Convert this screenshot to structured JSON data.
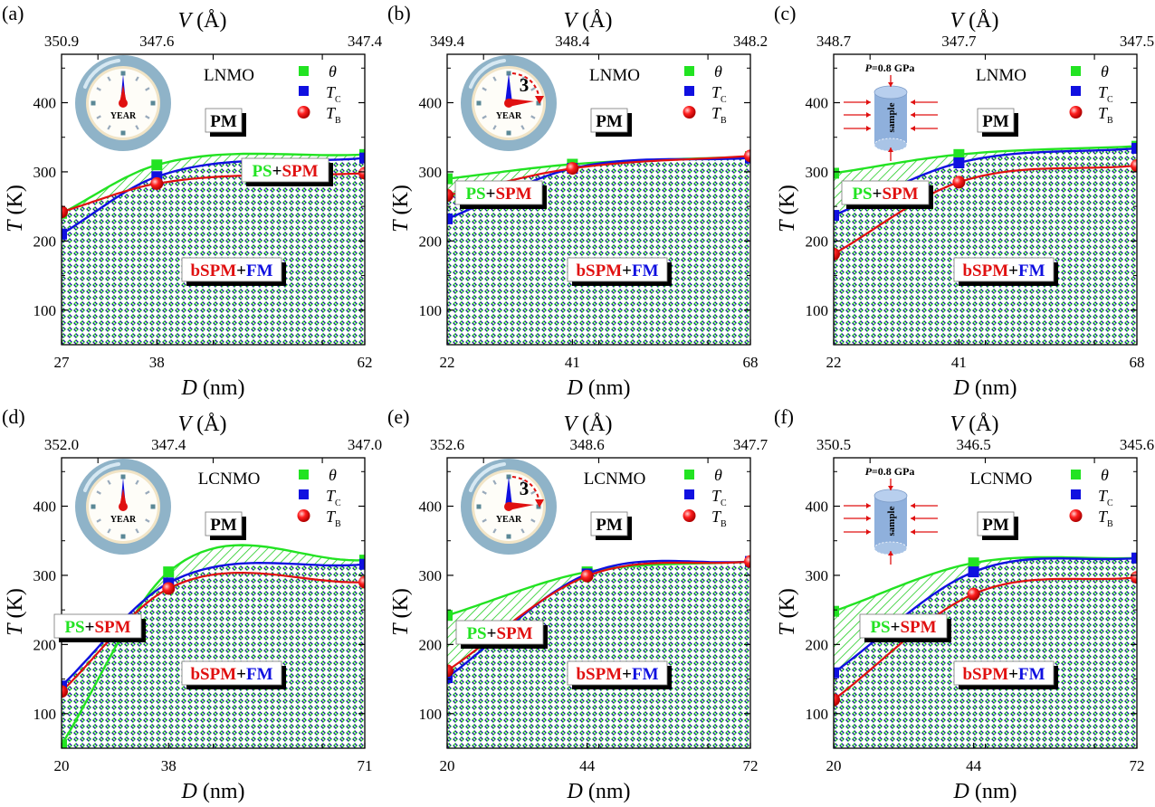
{
  "figure": {
    "colors": {
      "theta": "#22e322",
      "tc": "#1010e0",
      "tb": "#e01010",
      "hatch_green": "#22cc22",
      "hatch_blue": "#1a1a9a",
      "clock_ring": "#8fb3c8",
      "clock_face": "#fefdf8",
      "sample": "#8fb0dc"
    }
  },
  "chart_data": [
    {
      "panel_label": "(a)",
      "type": "line",
      "sample": "LNMO",
      "inset": "clock",
      "inset_years": "",
      "inset_text": "YEAR",
      "xlabel": "D (nm)",
      "xlabel_italic": "D",
      "xlabel_unit": " (nm)",
      "top_label_italic": "V",
      "top_label_unit": " (Å)",
      "ylabel_italic": "T",
      "ylabel_unit": " (K)",
      "x": [
        27,
        38,
        62
      ],
      "xticks": [
        "27",
        "38",
        "62"
      ],
      "top_ticks": [
        "350.9",
        "347.6",
        "347.4"
      ],
      "ylim": [
        50,
        470
      ],
      "yticks": [
        100,
        200,
        300,
        400
      ],
      "series": [
        {
          "name": "θ",
          "key": "theta",
          "values": [
            240,
            310,
            325
          ]
        },
        {
          "name": "T_C",
          "key": "tc",
          "values": [
            210,
            293,
            320
          ]
        },
        {
          "name": "T_B",
          "key": "tb",
          "values": [
            242,
            283,
            298
          ]
        }
      ],
      "region_labels": {
        "pm": "PM",
        "ps": "PS",
        "plus": "+",
        "spm": "SPM",
        "bspm": "bSPM",
        "fm": "FM"
      },
      "legend": [
        "θ",
        "T_C",
        "T_B"
      ],
      "legend_position": "top-right"
    },
    {
      "panel_label": "(b)",
      "type": "line",
      "sample": "LNMO",
      "inset": "clock",
      "inset_years": "3",
      "inset_text": "YEAR",
      "xlabel_italic": "D",
      "xlabel_unit": " (nm)",
      "top_label_italic": "V",
      "top_label_unit": " (Å)",
      "ylabel_italic": "T",
      "ylabel_unit": " (K)",
      "x": [
        22,
        41,
        68
      ],
      "xticks": [
        "22",
        "41",
        "68"
      ],
      "top_ticks": [
        "349.4",
        "348.4",
        "348.2"
      ],
      "ylim": [
        50,
        470
      ],
      "yticks": [
        100,
        200,
        300,
        400
      ],
      "series": [
        {
          "name": "θ",
          "key": "theta",
          "values": [
            290,
            311,
            322
          ]
        },
        {
          "name": "T_C",
          "key": "tc",
          "values": [
            232,
            305,
            320
          ]
        },
        {
          "name": "T_B",
          "key": "tb",
          "values": [
            266,
            305,
            323
          ]
        }
      ],
      "region_labels": {
        "pm": "PM",
        "ps": "PS",
        "plus": "+",
        "spm": "SPM",
        "bspm": "bSPM",
        "fm": "FM"
      },
      "legend": [
        "θ",
        "T_C",
        "T_B"
      ],
      "legend_position": "top-right"
    },
    {
      "panel_label": "(c)",
      "type": "line",
      "sample": "LNMO",
      "inset": "pressure",
      "inset_text": "P=0.8 GPa",
      "inset_sample": "sample",
      "xlabel_italic": "D",
      "xlabel_unit": " (nm)",
      "top_label_italic": "V",
      "top_label_unit": " (Å)",
      "ylabel_italic": "T",
      "ylabel_unit": " (K)",
      "x": [
        22,
        41,
        68
      ],
      "xticks": [
        "22",
        "41",
        "68"
      ],
      "top_ticks": [
        "348.7",
        "347.7",
        "347.5"
      ],
      "ylim": [
        50,
        470
      ],
      "yticks": [
        100,
        200,
        300,
        400
      ],
      "series": [
        {
          "name": "θ",
          "key": "theta",
          "values": [
            298,
            325,
            337
          ]
        },
        {
          "name": "T_C",
          "key": "tc",
          "values": [
            237,
            313,
            334
          ]
        },
        {
          "name": "T_B",
          "key": "tb",
          "values": [
            181,
            285,
            309
          ]
        }
      ],
      "region_labels": {
        "pm": "PM",
        "ps": "PS",
        "plus": "+",
        "spm": "SPM",
        "bspm": "bSPM",
        "fm": "FM"
      },
      "legend": [
        "θ",
        "T_C",
        "T_B"
      ],
      "legend_position": "top-right"
    },
    {
      "panel_label": "(d)",
      "type": "line",
      "sample": "LCNMO",
      "inset": "clock",
      "inset_years": "",
      "inset_text": "YEAR",
      "xlabel_italic": "D",
      "xlabel_unit": " (nm)",
      "top_label_italic": "V",
      "top_label_unit": " (Å)",
      "ylabel_italic": "T",
      "ylabel_unit": " (K)",
      "x": [
        20,
        38,
        71
      ],
      "xticks": [
        "20",
        "38",
        "71"
      ],
      "top_ticks": [
        "352.0",
        "347.4",
        "347.0"
      ],
      "ylim": [
        50,
        470
      ],
      "yticks": [
        100,
        200,
        300,
        400
      ],
      "series": [
        {
          "name": "θ",
          "key": "theta",
          "values": [
            55,
            305,
            322
          ]
        },
        {
          "name": "T_C",
          "key": "tc",
          "values": [
            140,
            289,
            316
          ]
        },
        {
          "name": "T_B",
          "key": "tb",
          "values": [
            132,
            281,
            290
          ]
        }
      ],
      "region_labels": {
        "pm": "PM",
        "ps": "PS",
        "plus": "+",
        "spm": "SPM",
        "bspm": "bSPM",
        "fm": "FM"
      },
      "legend": [
        "θ",
        "T_C",
        "T_B"
      ],
      "legend_position": "top-right"
    },
    {
      "panel_label": "(e)",
      "type": "line",
      "sample": "LCNMO",
      "inset": "clock",
      "inset_years": "3",
      "inset_text": "YEAR",
      "xlabel_italic": "D",
      "xlabel_unit": " (nm)",
      "top_label_italic": "V",
      "top_label_unit": " (Å)",
      "ylabel_italic": "T",
      "ylabel_unit": " (K)",
      "x": [
        20,
        44,
        72
      ],
      "xticks": [
        "20",
        "44",
        "72"
      ],
      "top_ticks": [
        "352.6",
        "348.6",
        "347.7"
      ],
      "ylim": [
        50,
        470
      ],
      "yticks": [
        100,
        200,
        300,
        400
      ],
      "series": [
        {
          "name": "θ",
          "key": "theta",
          "values": [
            242,
            305,
            320
          ]
        },
        {
          "name": "T_C",
          "key": "tc",
          "values": [
            152,
            302,
            320
          ]
        },
        {
          "name": "T_B",
          "key": "tb",
          "values": [
            162,
            299,
            320
          ]
        }
      ],
      "region_labels": {
        "pm": "PM",
        "ps": "PS",
        "plus": "+",
        "spm": "SPM",
        "bspm": "bSPM",
        "fm": "FM"
      },
      "legend": [
        "θ",
        "T_C",
        "T_B"
      ],
      "legend_position": "top-right"
    },
    {
      "panel_label": "(f)",
      "type": "line",
      "sample": "LCNMO",
      "inset": "pressure",
      "inset_text": "P=0.8 GPa",
      "inset_sample": "sample",
      "xlabel_italic": "D",
      "xlabel_unit": " (nm)",
      "top_label_italic": "V",
      "top_label_unit": " (Å)",
      "ylabel_italic": "T",
      "ylabel_unit": " (K)",
      "x": [
        20,
        44,
        72
      ],
      "xticks": [
        "20",
        "44",
        "72"
      ],
      "top_ticks": [
        "350.5",
        "346.5",
        "345.6"
      ],
      "ylim": [
        50,
        470
      ],
      "yticks": [
        100,
        200,
        300,
        400
      ],
      "series": [
        {
          "name": "θ",
          "key": "theta",
          "values": [
            248,
            318,
            325
          ]
        },
        {
          "name": "T_C",
          "key": "tc",
          "values": [
            159,
            305,
            325
          ]
        },
        {
          "name": "T_B",
          "key": "tb",
          "values": [
            120,
            273,
            297
          ]
        }
      ],
      "region_labels": {
        "pm": "PM",
        "ps": "PS",
        "plus": "+",
        "spm": "SPM",
        "bspm": "bSPM",
        "fm": "FM"
      },
      "legend": [
        "θ",
        "T_C",
        "T_B"
      ],
      "legend_position": "top-right"
    }
  ]
}
